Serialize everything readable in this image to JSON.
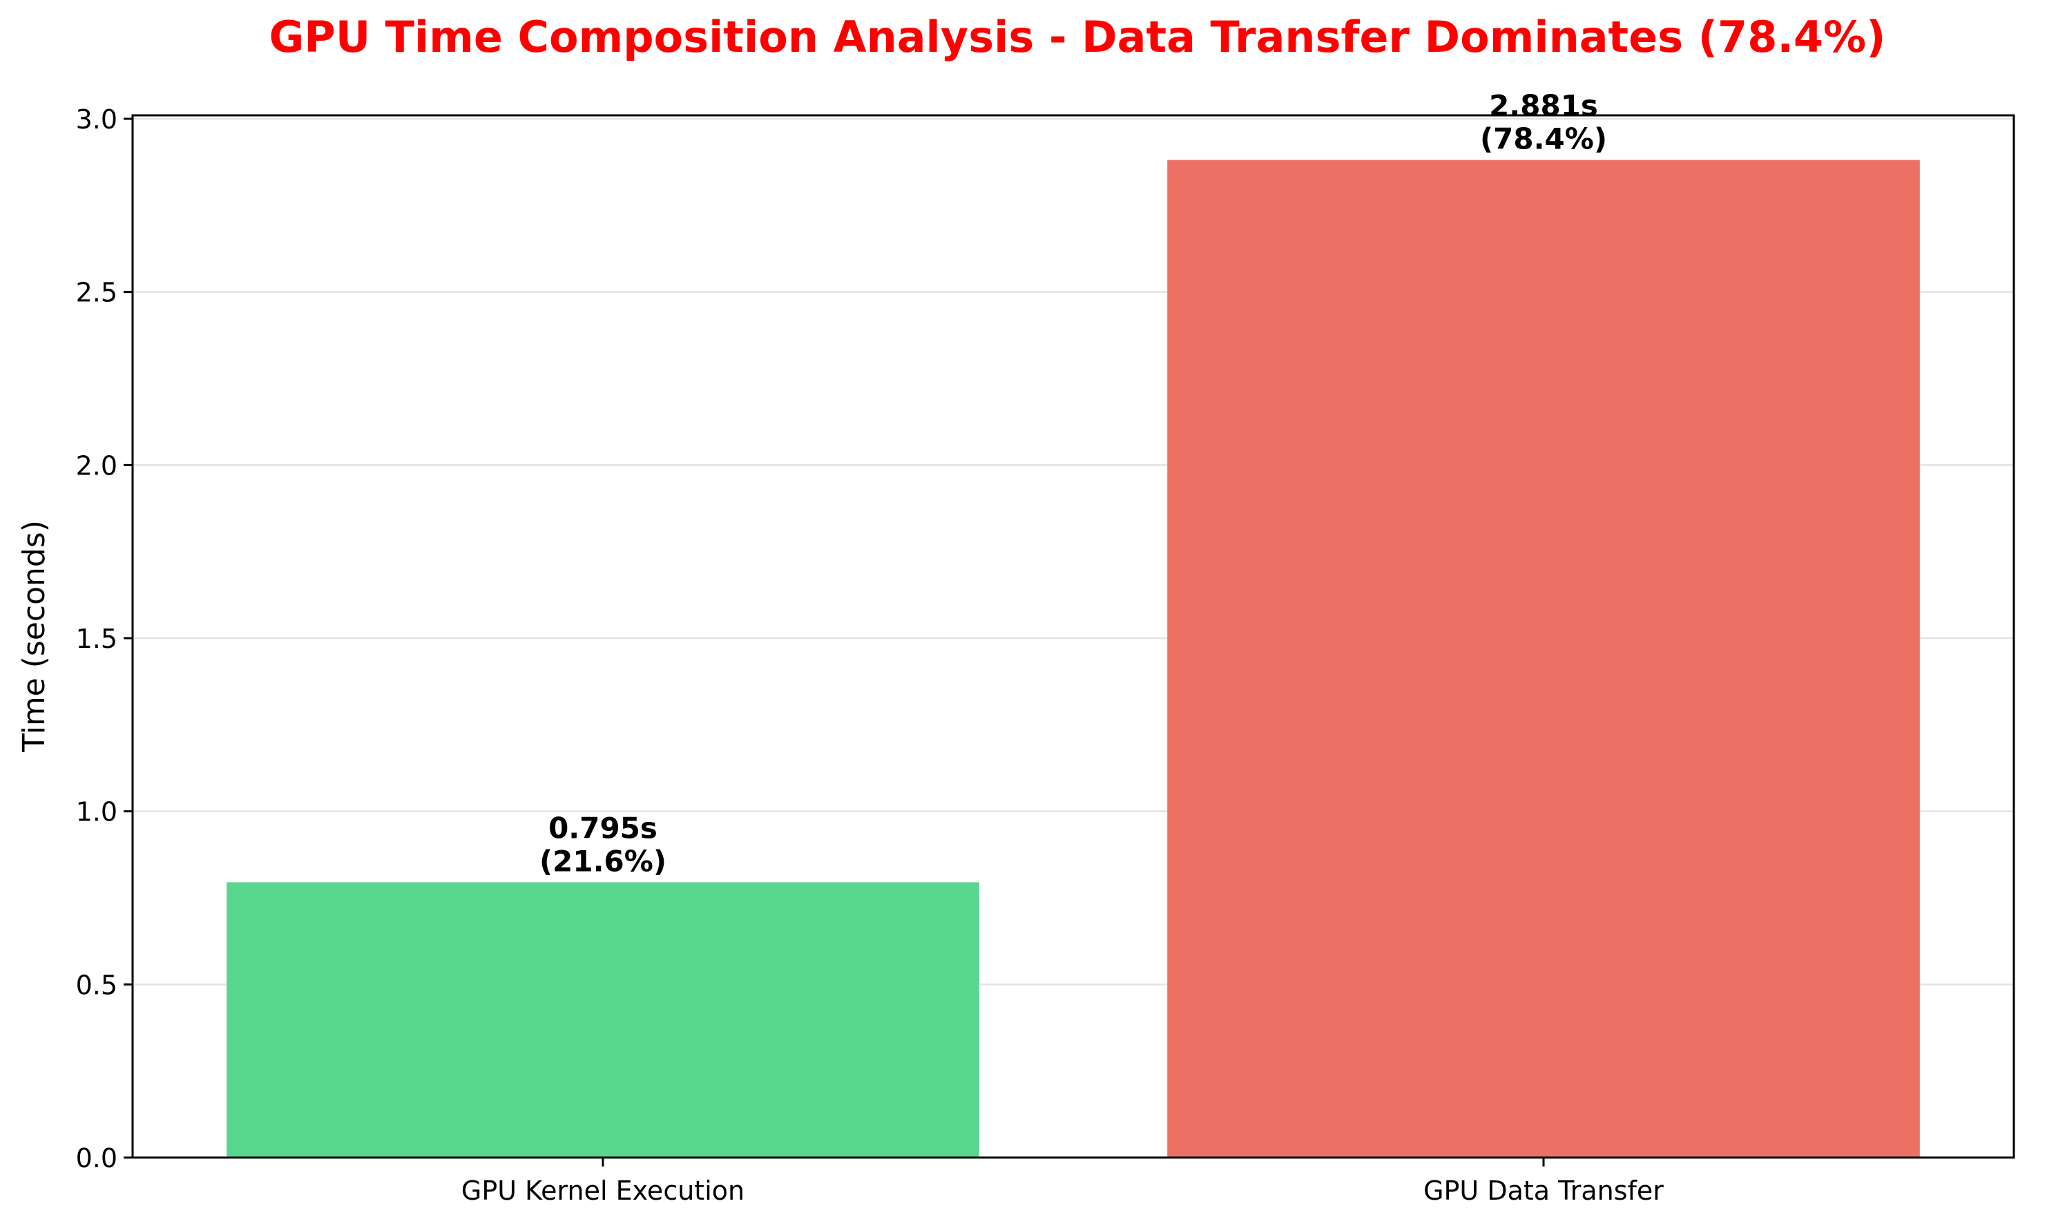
{
  "chart_data": {
    "type": "bar",
    "title": "GPU Time Composition Analysis - Data Transfer Dominates (78.4%)",
    "xlabel": "",
    "ylabel": "Time (seconds)",
    "categories": [
      "GPU Kernel Execution",
      "GPU Data Transfer"
    ],
    "values": [
      0.795,
      2.881
    ],
    "bar_labels": [
      [
        "0.795s",
        "(21.6%)"
      ],
      [
        "2.881s",
        "(78.4%)"
      ]
    ],
    "bar_colors": [
      "#58d68d",
      "#ec7063"
    ],
    "title_color": "#ff0000",
    "ylim": [
      0,
      3.01
    ],
    "yticks": [
      0.0,
      0.5,
      1.0,
      1.5,
      2.0,
      2.5,
      3.0
    ],
    "ytick_labels": [
      "0.0",
      "0.5",
      "1.0",
      "1.5",
      "2.0",
      "2.5",
      "3.0"
    ],
    "grid": "y-axis, light gray",
    "legend": "none"
  }
}
